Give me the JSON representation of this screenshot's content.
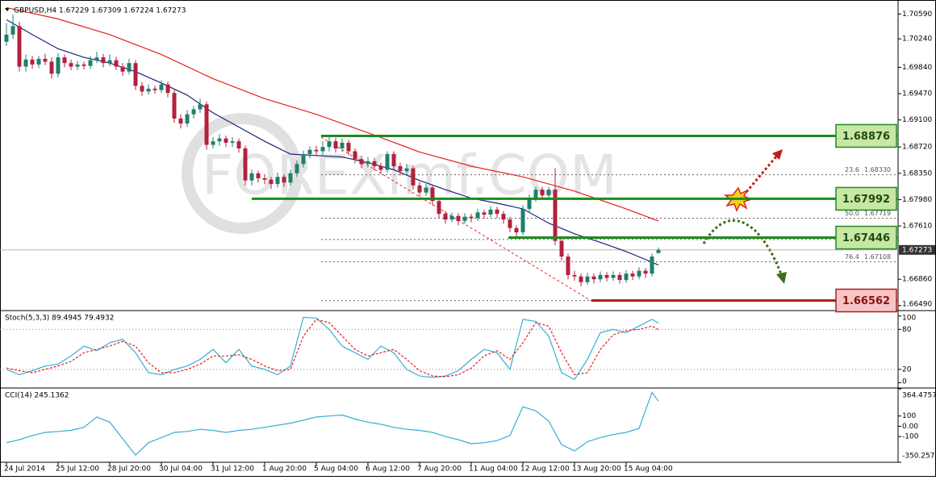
{
  "chart_data": [
    {
      "type": "candlestick",
      "title": "GBPUSD,H4  1.67229 1.67309 1.67224 1.67273",
      "watermark": "FOREXimf.COM",
      "up_color": "#1f7f6e",
      "down_color": "#b3203d",
      "ylim": [
        1.6642,
        1.7073
      ],
      "yticks": [
        {
          "value": 1.7059,
          "label": "1.70590"
        },
        {
          "value": 1.7024,
          "label": "1.70240"
        },
        {
          "value": 1.6984,
          "label": "1.69840"
        },
        {
          "value": 1.6947,
          "label": "1.69470"
        },
        {
          "value": 1.691,
          "label": "1.69100"
        },
        {
          "value": 1.6872,
          "label": "1.68720"
        },
        {
          "value": 1.6835,
          "label": "1.68350"
        },
        {
          "value": 1.6798,
          "label": "1.67980"
        },
        {
          "value": 1.6761,
          "label": "1.67610"
        },
        {
          "value": 1.6686,
          "label": "1.66860"
        },
        {
          "value": 1.6649,
          "label": "1.66490"
        }
      ],
      "categories": [
        "24 Jul 2014",
        null,
        null,
        null,
        null,
        null,
        null,
        null,
        "25 Jul 12:00",
        null,
        null,
        null,
        null,
        null,
        null,
        null,
        "28 Jul 20:00",
        null,
        null,
        null,
        null,
        null,
        null,
        null,
        "30 Jul 04:00",
        null,
        null,
        null,
        null,
        null,
        null,
        null,
        "31 Jul 12:00",
        null,
        null,
        null,
        null,
        null,
        null,
        null,
        "1 Aug 20:00",
        null,
        null,
        null,
        null,
        null,
        null,
        null,
        "5 Aug 04:00",
        null,
        null,
        null,
        null,
        null,
        null,
        null,
        "6 Aug 12:00",
        null,
        null,
        null,
        null,
        null,
        null,
        null,
        "7 Aug 20:00",
        null,
        null,
        null,
        null,
        null,
        null,
        null,
        "11 Aug 04:00",
        null,
        null,
        null,
        null,
        null,
        null,
        null,
        "12 Aug 12:00",
        null,
        null,
        null,
        null,
        null,
        null,
        null,
        "13 Aug 20:00",
        null,
        null,
        null,
        null,
        null,
        null,
        null,
        "15 Aug 04:00",
        null,
        null,
        null,
        null,
        null
      ],
      "ohlc": [
        [
          1.702,
          1.7046,
          1.7014,
          1.703
        ],
        [
          1.703,
          1.7058,
          1.7024,
          1.7042
        ],
        [
          1.7042,
          1.7048,
          1.6978,
          1.6985
        ],
        [
          1.6985,
          1.7002,
          1.6978,
          1.6995
        ],
        [
          1.6995,
          1.7,
          1.6982,
          1.6988
        ],
        [
          1.6988,
          1.7,
          1.6983,
          1.6996
        ],
        [
          1.6996,
          1.7003,
          1.6987,
          1.6992
        ],
        [
          1.6992,
          1.6998,
          1.6968,
          1.6975
        ],
        [
          1.6975,
          1.7004,
          1.697,
          1.6998
        ],
        [
          1.6998,
          1.7002,
          1.6984,
          1.699
        ],
        [
          1.699,
          1.6995,
          1.698,
          1.6985
        ],
        [
          1.6985,
          1.6993,
          1.698,
          1.6988
        ],
        [
          1.6988,
          1.6992,
          1.6981,
          1.6986
        ],
        [
          1.6986,
          1.7,
          1.6982,
          1.6994
        ],
        [
          1.6994,
          1.7006,
          1.699,
          1.6998
        ],
        [
          1.6998,
          1.7003,
          1.6984,
          1.699
        ],
        [
          1.699,
          1.7002,
          1.6986,
          1.6994
        ],
        [
          1.6994,
          1.6999,
          1.698,
          1.6985
        ],
        [
          1.6985,
          1.699,
          1.6972,
          1.6978
        ],
        [
          1.6978,
          1.6996,
          1.6974,
          1.699
        ],
        [
          1.699,
          1.6994,
          1.6952,
          1.6958
        ],
        [
          1.6958,
          1.6963,
          1.6944,
          1.695
        ],
        [
          1.695,
          1.696,
          1.6946,
          1.6954
        ],
        [
          1.6954,
          1.6958,
          1.6947,
          1.6952
        ],
        [
          1.6952,
          1.6966,
          1.6948,
          1.696
        ],
        [
          1.696,
          1.6964,
          1.6942,
          1.6948
        ],
        [
          1.6948,
          1.6952,
          1.6906,
          1.6912
        ],
        [
          1.6912,
          1.6918,
          1.6898,
          1.6905
        ],
        [
          1.6905,
          1.6924,
          1.69,
          1.6918
        ],
        [
          1.6918,
          1.693,
          1.6912,
          1.6925
        ],
        [
          1.6925,
          1.694,
          1.692,
          1.6932
        ],
        [
          1.6932,
          1.6936,
          1.6868,
          1.6875
        ],
        [
          1.6875,
          1.6886,
          1.687,
          1.688
        ],
        [
          1.688,
          1.689,
          1.6874,
          1.6884
        ],
        [
          1.6884,
          1.6888,
          1.6872,
          1.6878
        ],
        [
          1.6878,
          1.6886,
          1.6872,
          1.688
        ],
        [
          1.688,
          1.6884,
          1.6864,
          1.687
        ],
        [
          1.687,
          1.6874,
          1.6818,
          1.6825
        ],
        [
          1.6825,
          1.684,
          1.6818,
          1.6835
        ],
        [
          1.6835,
          1.6839,
          1.6822,
          1.6828
        ],
        [
          1.6828,
          1.6834,
          1.682,
          1.6826
        ],
        [
          1.6826,
          1.683,
          1.6813,
          1.682
        ],
        [
          1.682,
          1.6836,
          1.6815,
          1.683
        ],
        [
          1.683,
          1.6834,
          1.6816,
          1.6822
        ],
        [
          1.6822,
          1.684,
          1.6818,
          1.6835
        ],
        [
          1.6835,
          1.6853,
          1.683,
          1.6848
        ],
        [
          1.6848,
          1.6867,
          1.6843,
          1.6862
        ],
        [
          1.6862,
          1.6873,
          1.6856,
          1.6868
        ],
        [
          1.6868,
          1.6874,
          1.686,
          1.6866
        ],
        [
          1.6866,
          1.688,
          1.6861,
          1.6872
        ],
        [
          1.6872,
          1.6888,
          1.6866,
          1.688
        ],
        [
          1.688,
          1.6885,
          1.6864,
          1.687
        ],
        [
          1.687,
          1.6884,
          1.6865,
          1.6878
        ],
        [
          1.6878,
          1.6882,
          1.686,
          1.6866
        ],
        [
          1.6866,
          1.687,
          1.6849,
          1.6855
        ],
        [
          1.6855,
          1.686,
          1.6842,
          1.6848
        ],
        [
          1.6848,
          1.6858,
          1.6843,
          1.6852
        ],
        [
          1.6852,
          1.6857,
          1.6839,
          1.6845
        ],
        [
          1.6845,
          1.685,
          1.6834,
          1.684
        ],
        [
          1.684,
          1.6866,
          1.6836,
          1.6862
        ],
        [
          1.6862,
          1.6866,
          1.684,
          1.6845
        ],
        [
          1.6845,
          1.685,
          1.6832,
          1.6838
        ],
        [
          1.6838,
          1.6848,
          1.6834,
          1.6842
        ],
        [
          1.6842,
          1.6846,
          1.6812,
          1.6818
        ],
        [
          1.6818,
          1.6823,
          1.6802,
          1.6808
        ],
        [
          1.6808,
          1.682,
          1.6803,
          1.6815
        ],
        [
          1.6815,
          1.6819,
          1.679,
          1.6796
        ],
        [
          1.6796,
          1.68,
          1.6772,
          1.6778
        ],
        [
          1.6778,
          1.6782,
          1.6764,
          1.677
        ],
        [
          1.677,
          1.678,
          1.6766,
          1.6775
        ],
        [
          1.6775,
          1.6779,
          1.6762,
          1.6768
        ],
        [
          1.6768,
          1.6779,
          1.6764,
          1.6774
        ],
        [
          1.6774,
          1.6778,
          1.6766,
          1.6772
        ],
        [
          1.6772,
          1.6785,
          1.6768,
          1.678
        ],
        [
          1.678,
          1.6784,
          1.6771,
          1.6777
        ],
        [
          1.6777,
          1.6789,
          1.6773,
          1.6784
        ],
        [
          1.6784,
          1.6788,
          1.6772,
          1.6778
        ],
        [
          1.6778,
          1.6782,
          1.6764,
          1.677
        ],
        [
          1.677,
          1.6774,
          1.6752,
          1.6758
        ],
        [
          1.6758,
          1.6762,
          1.6746,
          1.6752
        ],
        [
          1.6752,
          1.679,
          1.6748,
          1.6785
        ],
        [
          1.6785,
          1.6805,
          1.678,
          1.68
        ],
        [
          1.68,
          1.6816,
          1.6795,
          1.6812
        ],
        [
          1.6812,
          1.6816,
          1.6798,
          1.6804
        ],
        [
          1.6804,
          1.6816,
          1.68,
          1.6812
        ],
        [
          1.6812,
          1.6842,
          1.6734,
          1.674
        ],
        [
          1.674,
          1.6744,
          1.6712,
          1.6718
        ],
        [
          1.6718,
          1.6722,
          1.6686,
          1.6692
        ],
        [
          1.6692,
          1.6698,
          1.6684,
          1.669
        ],
        [
          1.669,
          1.6694,
          1.6676,
          1.6682
        ],
        [
          1.6682,
          1.6695,
          1.6678,
          1.669
        ],
        [
          1.669,
          1.6694,
          1.668,
          1.6686
        ],
        [
          1.6686,
          1.6697,
          1.6682,
          1.6692
        ],
        [
          1.6692,
          1.6696,
          1.6683,
          1.6688
        ],
        [
          1.6688,
          1.6697,
          1.6684,
          1.6692
        ],
        [
          1.6692,
          1.6696,
          1.668,
          1.6685
        ],
        [
          1.6685,
          1.6699,
          1.6681,
          1.6694
        ],
        [
          1.6694,
          1.6698,
          1.6685,
          1.669
        ],
        [
          1.669,
          1.6703,
          1.6686,
          1.6698
        ],
        [
          1.6698,
          1.6702,
          1.6688,
          1.6694
        ],
        [
          1.6694,
          1.6722,
          1.669,
          1.6718
        ],
        [
          1.67229,
          1.67309,
          1.67224,
          1.67273
        ]
      ],
      "series": [
        {
          "color": "#1a237e",
          "x": [
            0,
            4,
            8,
            12,
            16,
            20,
            24,
            28,
            32,
            36,
            40,
            44,
            48,
            52,
            56,
            60,
            64,
            68,
            72,
            76,
            80,
            84,
            88,
            92,
            96,
            100,
            101
          ],
          "values": [
            1.7051,
            1.703,
            1.701,
            1.6998,
            1.699,
            1.6978,
            1.6962,
            1.6945,
            1.692,
            1.69,
            1.688,
            1.6862,
            1.686,
            1.6858,
            1.685,
            1.684,
            1.6825,
            1.6812,
            1.68,
            1.6793,
            1.6785,
            1.6765,
            1.675,
            1.6738,
            1.6725,
            1.671,
            1.6706
          ]
        },
        {
          "color": "#e3241b",
          "x": [
            0,
            8,
            16,
            24,
            32,
            40,
            48,
            56,
            64,
            72,
            80,
            88,
            96,
            101
          ],
          "values": [
            1.7068,
            1.7052,
            1.703,
            1.7002,
            1.6968,
            1.694,
            1.6918,
            1.6892,
            1.6865,
            1.6845,
            1.683,
            1.681,
            1.6785,
            1.6768
          ]
        }
      ],
      "levels": [
        {
          "value": 1.68876,
          "color": "#1e8a1e",
          "fill": "#c8e6a4"
        },
        {
          "value": 1.67992,
          "color": "#1e8a1e",
          "fill": "#c8e6a4"
        },
        {
          "value": 1.67446,
          "color": "#1e8a1e",
          "fill": "#c8e6a4"
        },
        {
          "value": 1.66562,
          "color": "#b01c1c",
          "fill": "#f6c4c4"
        }
      ],
      "fibonacci": [
        {
          "name": "23.6",
          "value": 1.6833,
          "label": "1.68330"
        },
        {
          "name": "50.0",
          "value": 1.67719,
          "label": "1.67719"
        },
        {
          "name": "76.4",
          "value": 1.67108,
          "label": "1.67108"
        }
      ],
      "fib_unlabeled": [
        1.6742,
        1.6656
      ],
      "last_price": 1.67273
    },
    {
      "type": "oscillator",
      "title": "Stoch(5,3,3) 89.4945 79.4932",
      "ylim": [
        -8,
        107
      ],
      "yticks": [
        100,
        80,
        20,
        0
      ],
      "levels": [
        80,
        20
      ],
      "x": [
        0,
        2,
        4,
        6,
        8,
        10,
        12,
        14,
        16,
        18,
        20,
        22,
        24,
        26,
        28,
        30,
        32,
        34,
        36,
        38,
        40,
        42,
        44,
        46,
        48,
        50,
        52,
        54,
        56,
        58,
        60,
        62,
        64,
        66,
        68,
        70,
        72,
        74,
        76,
        78,
        80,
        82,
        84,
        86,
        88,
        90,
        92,
        94,
        96,
        98,
        100,
        101
      ],
      "series": [
        {
          "color": "#35aed6",
          "dash": false,
          "values": [
            20,
            12,
            18,
            25,
            28,
            40,
            55,
            48,
            60,
            65,
            45,
            15,
            12,
            20,
            25,
            35,
            50,
            30,
            50,
            25,
            20,
            12,
            25,
            98,
            97,
            80,
            55,
            45,
            35,
            55,
            45,
            20,
            10,
            8,
            10,
            18,
            35,
            50,
            45,
            20,
            95,
            92,
            70,
            15,
            5,
            35,
            75,
            80,
            75,
            85,
            95,
            89.4945
          ]
        },
        {
          "color": "#e3241b",
          "dash": true,
          "values": [
            22,
            18,
            15,
            20,
            25,
            32,
            45,
            50,
            55,
            62,
            55,
            30,
            15,
            15,
            20,
            28,
            40,
            40,
            42,
            35,
            25,
            18,
            20,
            70,
            95,
            90,
            70,
            50,
            40,
            45,
            50,
            35,
            18,
            10,
            9,
            12,
            22,
            40,
            48,
            35,
            60,
            90,
            85,
            45,
            12,
            15,
            50,
            72,
            78,
            80,
            85,
            79.4932
          ]
        }
      ]
    },
    {
      "type": "oscillator",
      "title": "CCI(14) 245.1362",
      "ylim": [
        -350.2572,
        364.4757
      ],
      "yticks": [
        364.4757,
        100,
        {
          "value": 0,
          "label": "0.00"
        },
        -100,
        -350.2572
      ],
      "levels": [],
      "x": [
        0,
        2,
        4,
        6,
        8,
        10,
        12,
        14,
        16,
        18,
        20,
        22,
        24,
        26,
        28,
        30,
        32,
        34,
        36,
        38,
        40,
        42,
        44,
        46,
        48,
        50,
        52,
        54,
        56,
        58,
        60,
        62,
        64,
        66,
        68,
        70,
        72,
        74,
        76,
        78,
        80,
        82,
        84,
        86,
        88,
        90,
        92,
        94,
        96,
        98,
        100,
        101
      ],
      "series": [
        {
          "color": "#35aed6",
          "dash": false,
          "values": [
            -160,
            -130,
            -90,
            -60,
            -50,
            -40,
            -10,
            90,
            40,
            -120,
            -280,
            -160,
            -110,
            -60,
            -50,
            -30,
            -40,
            -60,
            -40,
            -30,
            -10,
            10,
            30,
            60,
            90,
            100,
            110,
            70,
            40,
            20,
            -10,
            -30,
            -40,
            -60,
            -100,
            -130,
            -170,
            -160,
            -140,
            -90,
            190,
            150,
            50,
            -180,
            -240,
            -150,
            -110,
            -80,
            -60,
            -20,
            330,
            245.1362
          ]
        }
      ]
    }
  ]
}
